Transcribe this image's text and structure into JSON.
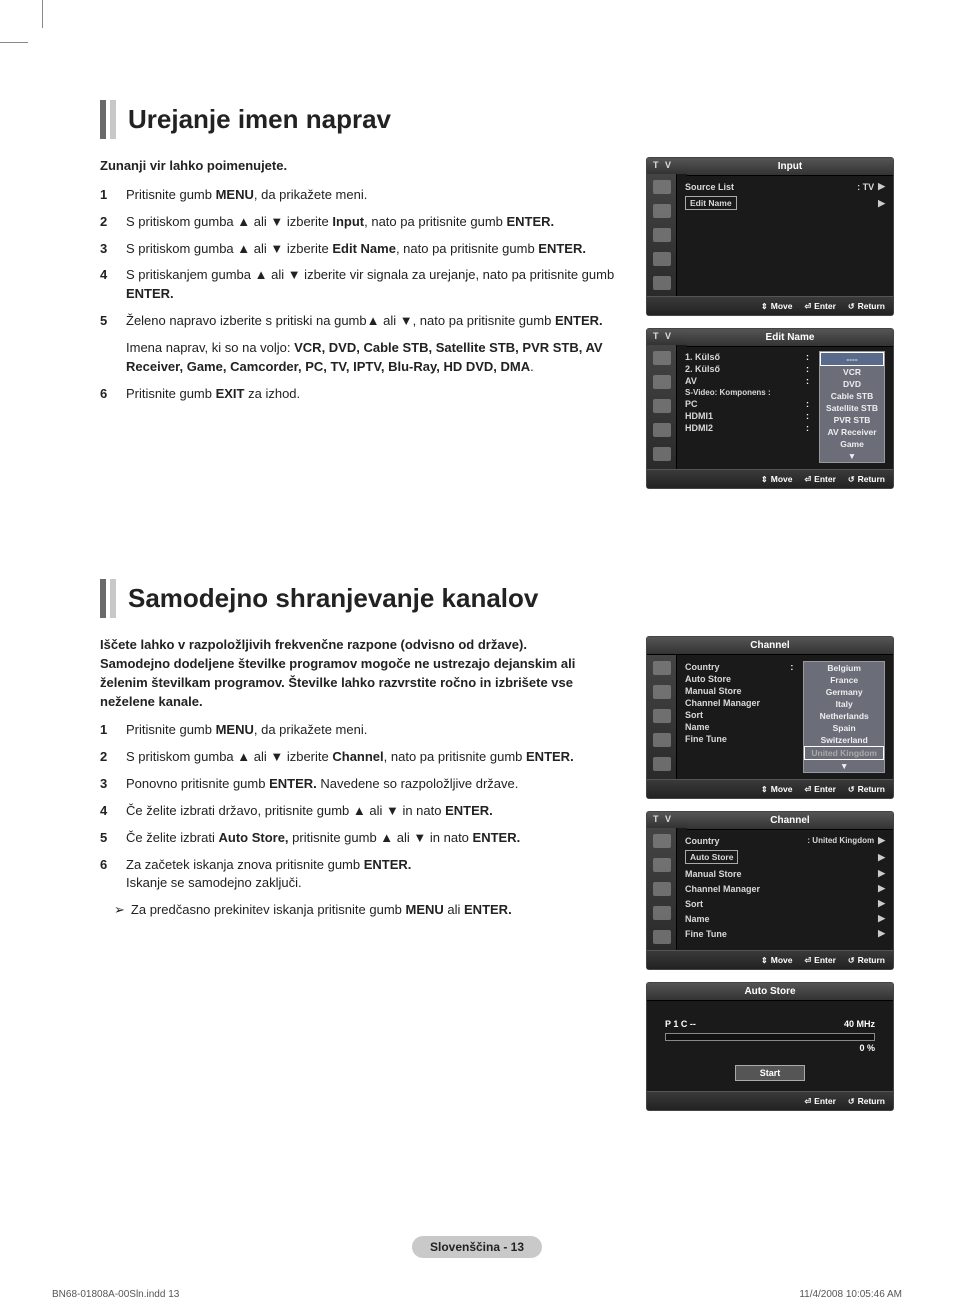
{
  "section1": {
    "title": "Urejanje imen naprav",
    "intro": "Zunanji vir lahko poimenujete.",
    "steps": [
      {
        "n": "1",
        "t": "Pritisnite gumb <b>MENU</b>, da prikažete meni."
      },
      {
        "n": "2",
        "t": "S pritiskom gumba ▲ ali ▼ izberite <b>Input</b>, nato pa pritisnite gumb <b>ENTER.</b>"
      },
      {
        "n": "3",
        "t": "S pritiskom gumba ▲ ali ▼ izberite <b>Edit Name</b>, nato pa pritisnite gumb <b>ENTER.</b>"
      },
      {
        "n": "4",
        "t": "S pritiskanjem gumba ▲ ali ▼ izberite vir signala za urejanje, nato pa pritisnite gumb <b>ENTER.</b>"
      },
      {
        "n": "5",
        "t": "Želeno napravo izberite s pritiski na gumb▲ ali ▼, nato pa pritisnite gumb <b>ENTER.</b>"
      },
      {
        "n": "6",
        "t": "Pritisnite gumb <b>EXIT</b> za izhod."
      }
    ],
    "devices_note": "Imena naprav, ki so na voljo: <b>VCR, DVD, Cable STB, Satellite STB, PVR STB, AV Receiver, Game, Camcorder, PC, TV, IPTV, Blu-Ray, HD DVD, DMA</b>."
  },
  "screens1": {
    "input": {
      "corner": "T V",
      "title": "Input",
      "rows": [
        {
          "label": "Source List",
          "val": ": TV",
          "arrow": "▶"
        },
        {
          "label": "Edit Name",
          "boxed": true,
          "val": "",
          "arrow": "▶"
        }
      ],
      "footer": {
        "move": "Move",
        "enter": "Enter",
        "return": "Return"
      }
    },
    "editname": {
      "corner": "T V",
      "title": "Edit Name",
      "left_labels": [
        "1. Külső",
        "2. Külső",
        "AV",
        "S-Video: Komponens :",
        "PC",
        "HDMI1",
        "HDMI2"
      ],
      "options": [
        "----",
        "VCR",
        "DVD",
        "Cable STB",
        "Satellite STB",
        "PVR STB",
        "AV Receiver",
        "Game",
        "▼"
      ],
      "footer": {
        "move": "Move",
        "enter": "Enter",
        "return": "Return"
      }
    }
  },
  "section2": {
    "title": "Samodejno shranjevanje kanalov",
    "intro": "Iščete lahko v razpoložljivih frekvenčne razpone (odvisno od države).\nSamodejno dodeljene številke programov mogoče ne ustrezajo dejanskim ali želenim številkam programov. Številke lahko razvrstite ročno in izbrišete vse neželene kanale.",
    "steps": [
      {
        "n": "1",
        "t": "Pritisnite gumb <b>MENU</b>, da prikažete meni."
      },
      {
        "n": "2",
        "t": "S pritiskom gumba ▲ ali ▼ izberite <b>Channel</b>, nato pa pritisnite gumb <b>ENTER.</b>"
      },
      {
        "n": "3",
        "t": "Ponovno pritisnite gumb <b>ENTER.</b> Navedene so razpoložljive države."
      },
      {
        "n": "4",
        "t": "Če želite izbrati državo, pritisnite gumb ▲ ali ▼ in nato <b>ENTER.</b>"
      },
      {
        "n": "5",
        "t": "Če želite izbrati <b>Auto Store,</b> pritisnite gumb ▲ ali ▼ in nato <b>ENTER.</b>"
      },
      {
        "n": "6",
        "t": "Za začetek iskanja znova pritisnite gumb <b>ENTER.</b><br>Iskanje se samodejno zaključi."
      }
    ],
    "note": "Za predčasno prekinitev iskanja pritisnite gumb <b>MENU</b> ali <b>ENTER.</b>"
  },
  "screens2": {
    "channel1": {
      "title": "Channel",
      "left_labels": [
        "Country",
        "Auto Store",
        "Manual Store",
        "Channel Manager",
        "Sort",
        "Name",
        "Fine Tune"
      ],
      "country_suffix": ":",
      "options": [
        "Belgium",
        "France",
        "Germany",
        "Italy",
        "Netherlands",
        "Spain",
        "Switzerland",
        "United Kingdom",
        "▼"
      ],
      "footer": {
        "move": "Move",
        "enter": "Enter",
        "return": "Return"
      }
    },
    "channel2": {
      "corner": "T V",
      "title": "Channel",
      "rows": [
        {
          "label": "Country",
          "val": ": United Kingdom",
          "arrow": "▶"
        },
        {
          "label": "Auto Store",
          "boxed": true,
          "arrow": "▶"
        },
        {
          "label": "Manual Store",
          "arrow": "▶"
        },
        {
          "label": "Channel Manager",
          "arrow": "▶"
        },
        {
          "label": "Sort",
          "arrow": "▶"
        },
        {
          "label": "Name",
          "arrow": "▶"
        },
        {
          "label": "Fine Tune",
          "arrow": "▶"
        }
      ],
      "footer": {
        "move": "Move",
        "enter": "Enter",
        "return": "Return"
      }
    },
    "autostore": {
      "title": "Auto Store",
      "left": "P   1     C   --",
      "right_top": "40 MHz",
      "right_bot": "0 %",
      "start": "Start",
      "footer": {
        "enter": "Enter",
        "return": "Return"
      }
    }
  },
  "footer_pill": "Slovenščina - 13",
  "doc_footer_left": "BN68-01808A-00Sln.indd   13",
  "doc_footer_right": "11/4/2008   10:05:46 AM"
}
